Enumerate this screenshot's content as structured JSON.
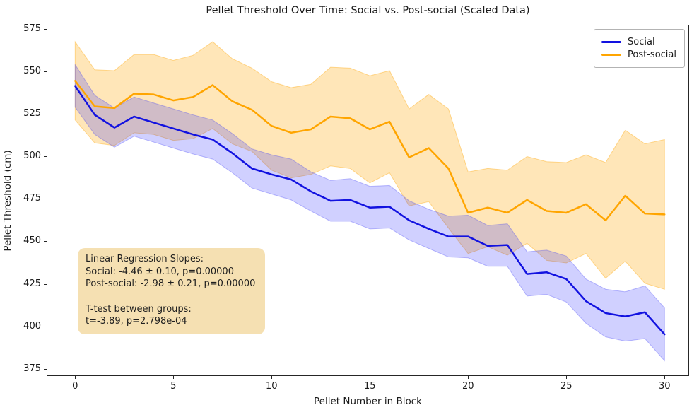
{
  "chart": {
    "title": "Pellet Threshold Over Time: Social vs. Post-social (Scaled Data)",
    "xlabel": "Pellet Number in Block",
    "ylabel": "Pellet Threshold (cm)"
  },
  "chart_data": {
    "type": "line",
    "title": "Pellet Threshold Over Time: Social vs. Post-social (Scaled Data)",
    "xlabel": "Pellet Number in Block",
    "ylabel": "Pellet Threshold (cm)",
    "grid": false,
    "legend_position": "upper right",
    "xlim": [
      -1.45,
      31.25
    ],
    "ylim": [
      371,
      577.5
    ],
    "xticks": [
      0,
      5,
      10,
      15,
      20,
      25,
      30
    ],
    "yticks": [
      375,
      400,
      425,
      450,
      475,
      500,
      525,
      550,
      575
    ],
    "x": [
      0,
      1,
      2,
      3,
      4,
      5,
      6,
      7,
      8,
      9,
      10,
      11,
      12,
      13,
      14,
      15,
      16,
      17,
      18,
      19,
      20,
      21,
      22,
      23,
      24,
      25,
      26,
      27,
      28,
      29,
      30
    ],
    "series": [
      {
        "name": "Social",
        "color": "#1212e0",
        "band_fill": "rgba(40,40,255,0.22)",
        "band_edge": "rgba(70,70,245,0.35)",
        "values": [
          541.5,
          524.5,
          517,
          523.5,
          520,
          516.5,
          513,
          510,
          502,
          493,
          489.5,
          486.5,
          479.5,
          474,
          474.5,
          470,
          470.5,
          462.5,
          457.5,
          453,
          453,
          447.5,
          448,
          431,
          432,
          428,
          415,
          408,
          406,
          408.5,
          395.5
        ],
        "band_upper": [
          554,
          536,
          528.5,
          535,
          531.5,
          528,
          524.5,
          521.5,
          513.5,
          504.5,
          501,
          498.5,
          491,
          486,
          487,
          482.5,
          483,
          474,
          469,
          465,
          465.5,
          459.5,
          460.5,
          444,
          445,
          441.5,
          428,
          422,
          420.5,
          424,
          411
        ],
        "band_lower": [
          529,
          513,
          505.5,
          512,
          508.5,
          505,
          501.5,
          498.5,
          490.5,
          481.5,
          478,
          474.5,
          468,
          462,
          462,
          457.5,
          458,
          451,
          446,
          441,
          440.5,
          435.5,
          435.5,
          418,
          419,
          414.5,
          402,
          394,
          391.5,
          393,
          380
        ]
      },
      {
        "name": "Post-social",
        "color": "#ffa500",
        "band_fill": "rgba(255,165,0,0.28)",
        "band_edge": "rgba(255,165,0,0.4)",
        "values": [
          544.5,
          529.5,
          528.5,
          537,
          536.5,
          533,
          535,
          542,
          532.5,
          527.5,
          518,
          514,
          516,
          523.5,
          522.5,
          516,
          520.5,
          499.5,
          505,
          493,
          467,
          470,
          467,
          474.5,
          468,
          467,
          472,
          462.5,
          477,
          466.5,
          466
        ],
        "band_upper": [
          567.5,
          551,
          550.5,
          560,
          560,
          556.5,
          559.5,
          567.5,
          557.5,
          552,
          544,
          540.5,
          542.5,
          552.5,
          552,
          547.5,
          550.5,
          528,
          536.5,
          528,
          491,
          493,
          492,
          500,
          497,
          496.5,
          501,
          496.5,
          515.5,
          507.5,
          510
        ],
        "band_lower": [
          521.5,
          508,
          506.5,
          514,
          513,
          509.5,
          510.5,
          516.5,
          507.5,
          503,
          492,
          487.5,
          489.5,
          494.5,
          493,
          484.5,
          490.5,
          471,
          473.5,
          458,
          443,
          447,
          442,
          449,
          439,
          437.5,
          443,
          428.5,
          438.5,
          425.5,
          422
        ]
      }
    ]
  },
  "legend": {
    "items": [
      {
        "label": "Social",
        "color": "#1212e0"
      },
      {
        "label": "Post-social",
        "color": "#ffa500"
      }
    ]
  },
  "annotation": {
    "bg": "#f5e0b2",
    "lines": [
      "Linear Regression Slopes:",
      "Social: -4.46 ± 0.10, p=0.00000",
      "Post-social: -2.98 ± 0.21, p=0.00000",
      "",
      "T-test between groups:",
      "t=-3.89, p=2.798e-04"
    ]
  }
}
